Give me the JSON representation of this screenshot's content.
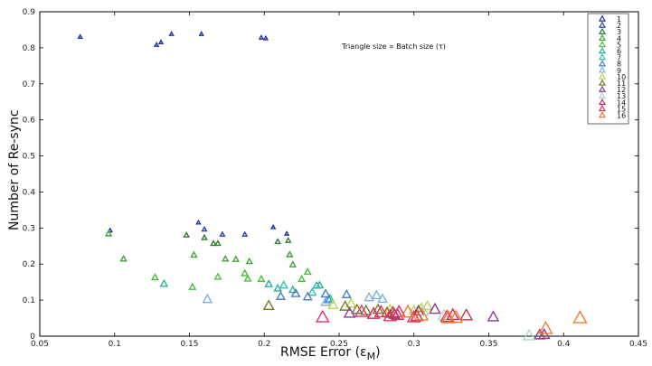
{
  "chart_data": {
    "type": "scatter",
    "xlabel": "RMSE Error (ε",
    "xlabel_sub": "M",
    "xlabel_close": ")",
    "ylabel": "Number of Re-sync",
    "annotation": "Triangle size ∝ Batch size (τ)",
    "xlim": [
      0.05,
      0.45
    ],
    "ylim": [
      0,
      0.9
    ],
    "xticks": [
      "0.05",
      "0.1",
      "0.15",
      "0.2",
      "0.25",
      "0.3",
      "0.35",
      "0.4",
      "0.45"
    ],
    "yticks": [
      "0",
      "0.1",
      "0.2",
      "0.3",
      "0.4",
      "0.5",
      "0.6",
      "0.7",
      "0.8",
      "0.9"
    ],
    "legend_position": "top-right",
    "marker": "open-triangle",
    "series": [
      {
        "name": "1",
        "color": "#1f2fa0",
        "points": [
          [
            0.077,
            0.83
          ],
          [
            0.097,
            0.293
          ],
          [
            0.128,
            0.808
          ],
          [
            0.131,
            0.815
          ],
          [
            0.138,
            0.838
          ],
          [
            0.156,
            0.315
          ],
          [
            0.158,
            0.838
          ],
          [
            0.198,
            0.828
          ],
          [
            0.201,
            0.826
          ],
          [
            0.206,
            0.302
          ],
          [
            0.215,
            0.284
          ]
        ]
      },
      {
        "name": "2",
        "color": "#2840b0",
        "points": [
          [
            0.16,
            0.296
          ],
          [
            0.172,
            0.282
          ],
          [
            0.187,
            0.282
          ]
        ]
      },
      {
        "name": "3",
        "color": "#2e7d32",
        "points": [
          [
            0.148,
            0.28
          ],
          [
            0.16,
            0.273
          ],
          [
            0.166,
            0.257
          ],
          [
            0.169,
            0.257
          ],
          [
            0.209,
            0.262
          ],
          [
            0.216,
            0.265
          ]
        ]
      },
      {
        "name": "4",
        "color": "#3fa535",
        "points": [
          [
            0.096,
            0.284
          ],
          [
            0.106,
            0.214
          ],
          [
            0.153,
            0.225
          ],
          [
            0.174,
            0.214
          ],
          [
            0.181,
            0.213
          ],
          [
            0.19,
            0.207
          ],
          [
            0.217,
            0.226
          ],
          [
            0.219,
            0.198
          ]
        ]
      },
      {
        "name": "5",
        "color": "#4cbf3c",
        "points": [
          [
            0.127,
            0.163
          ],
          [
            0.152,
            0.136
          ],
          [
            0.169,
            0.164
          ],
          [
            0.187,
            0.174
          ],
          [
            0.198,
            0.158
          ],
          [
            0.225,
            0.158
          ],
          [
            0.229,
            0.178
          ],
          [
            0.189,
            0.159
          ]
        ]
      },
      {
        "name": "6",
        "color": "#2ab0a0",
        "points": [
          [
            0.133,
            0.145
          ],
          [
            0.203,
            0.144
          ],
          [
            0.209,
            0.132
          ],
          [
            0.219,
            0.128
          ],
          [
            0.235,
            0.14
          ],
          [
            0.237,
            0.141
          ]
        ]
      },
      {
        "name": "7",
        "color": "#2fc4a8",
        "points": [
          [
            0.213,
            0.141
          ],
          [
            0.232,
            0.121
          ],
          [
            0.244,
            0.104
          ]
        ]
      },
      {
        "name": "8",
        "color": "#4a7fc8",
        "points": [
          [
            0.211,
            0.11
          ],
          [
            0.221,
            0.118
          ],
          [
            0.229,
            0.109
          ],
          [
            0.241,
            0.117
          ],
          [
            0.243,
            0.101
          ],
          [
            0.255,
            0.115
          ]
        ]
      },
      {
        "name": "9",
        "color": "#7fb0e6",
        "points": [
          [
            0.162,
            0.102
          ],
          [
            0.241,
            0.094
          ],
          [
            0.27,
            0.107
          ],
          [
            0.275,
            0.113
          ],
          [
            0.279,
            0.103
          ]
        ]
      },
      {
        "name": "10",
        "color": "#b5d94a",
        "points": [
          [
            0.246,
            0.086
          ],
          [
            0.258,
            0.09
          ],
          [
            0.284,
            0.074
          ],
          [
            0.3,
            0.071
          ],
          [
            0.305,
            0.078
          ],
          [
            0.309,
            0.083
          ]
        ]
      },
      {
        "name": "11",
        "color": "#7a7a2a",
        "points": [
          [
            0.203,
            0.084
          ],
          [
            0.254,
            0.082
          ],
          [
            0.262,
            0.073
          ],
          [
            0.268,
            0.07
          ],
          [
            0.276,
            0.073
          ],
          [
            0.282,
            0.065
          ]
        ]
      },
      {
        "name": "12",
        "color": "#8e3b8e",
        "points": [
          [
            0.257,
            0.063
          ],
          [
            0.287,
            0.06
          ],
          [
            0.303,
            0.069
          ],
          [
            0.314,
            0.074
          ],
          [
            0.353,
            0.053
          ],
          [
            0.384,
            0.003
          ],
          [
            0.387,
            0.004
          ]
        ]
      },
      {
        "name": "13",
        "color": "#b0d6c6",
        "points": [
          [
            0.306,
            0.069
          ],
          [
            0.32,
            0.057
          ],
          [
            0.377,
            0.001
          ]
        ]
      },
      {
        "name": "14",
        "color": "#d02a4c",
        "points": [
          [
            0.273,
            0.061
          ],
          [
            0.286,
            0.064
          ],
          [
            0.289,
            0.058
          ],
          [
            0.302,
            0.055
          ],
          [
            0.326,
            0.058
          ],
          [
            0.335,
            0.057
          ]
        ]
      },
      {
        "name": "15",
        "color": "#e0306a",
        "points": [
          [
            0.239,
            0.052
          ],
          [
            0.265,
            0.067
          ],
          [
            0.278,
            0.066
          ],
          [
            0.284,
            0.055
          ],
          [
            0.29,
            0.066
          ],
          [
            0.3,
            0.052
          ],
          [
            0.322,
            0.053
          ]
        ]
      },
      {
        "name": "16",
        "color": "#f07a30",
        "points": [
          [
            0.296,
            0.066
          ],
          [
            0.305,
            0.058
          ],
          [
            0.323,
            0.05
          ],
          [
            0.328,
            0.051
          ],
          [
            0.388,
            0.02
          ],
          [
            0.411,
            0.05
          ]
        ]
      }
    ]
  }
}
